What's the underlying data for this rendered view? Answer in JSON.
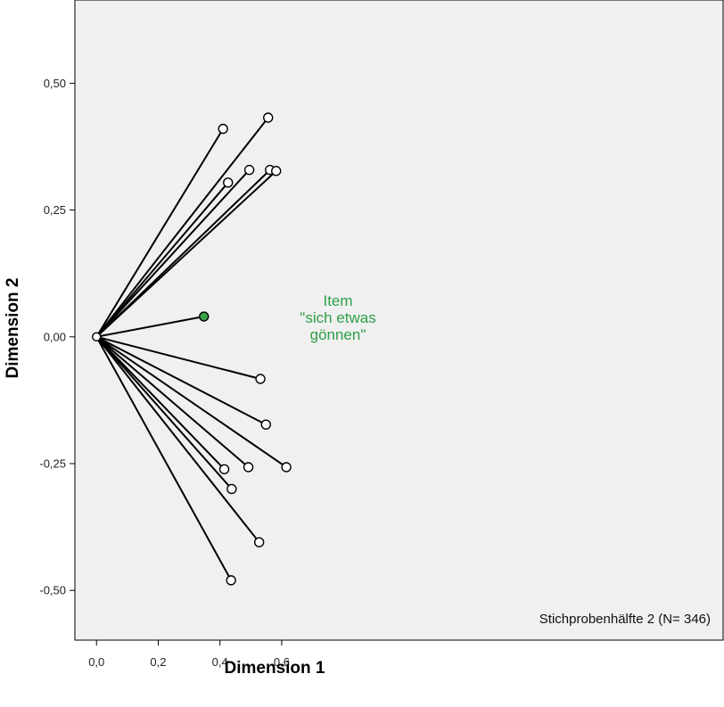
{
  "chart_data": {
    "type": "scatter",
    "title": "",
    "xlabel": "Dimension 1",
    "ylabel": "Dimension 2",
    "xlim": [
      -0.07,
      2.03
    ],
    "ylim": [
      -0.598,
      0.664
    ],
    "xticks": [
      0.0,
      0.2,
      0.4,
      0.6
    ],
    "xtick_labels": [
      "0,0",
      "0,2",
      "0,4",
      "0,6"
    ],
    "yticks": [
      0.5,
      0.25,
      0.0,
      -0.25,
      -0.5
    ],
    "ytick_labels": [
      "0,50",
      "0,25",
      "0,00",
      "-0,25",
      "-0,50"
    ],
    "grid": false,
    "origin": [
      0,
      0
    ],
    "vectors": [
      {
        "x": 0.41,
        "y": 0.41
      },
      {
        "x": 0.556,
        "y": 0.432
      },
      {
        "x": 0.426,
        "y": 0.304
      },
      {
        "x": 0.495,
        "y": 0.329
      },
      {
        "x": 0.562,
        "y": 0.329
      },
      {
        "x": 0.582,
        "y": 0.327
      },
      {
        "x": 0.348,
        "y": 0.04,
        "highlight": true
      },
      {
        "x": 0.531,
        "y": -0.083
      },
      {
        "x": 0.549,
        "y": -0.173
      },
      {
        "x": 0.615,
        "y": -0.257
      },
      {
        "x": 0.414,
        "y": -0.261
      },
      {
        "x": 0.492,
        "y": -0.257
      },
      {
        "x": 0.438,
        "y": -0.3
      },
      {
        "x": 0.527,
        "y": -0.405
      },
      {
        "x": 0.436,
        "y": -0.48
      }
    ],
    "annotation": {
      "lines": [
        "Item",
        "\"sich etwas",
        "gönnen\""
      ],
      "color": "#2e9e48"
    },
    "note": "Stichprobenhälfte 2 (N= 346)",
    "colors": {
      "plot_background": "#f0f0f0",
      "line": "#000000",
      "marker_fill": "#ffffff",
      "highlight_fill": "#3aa04a"
    }
  }
}
